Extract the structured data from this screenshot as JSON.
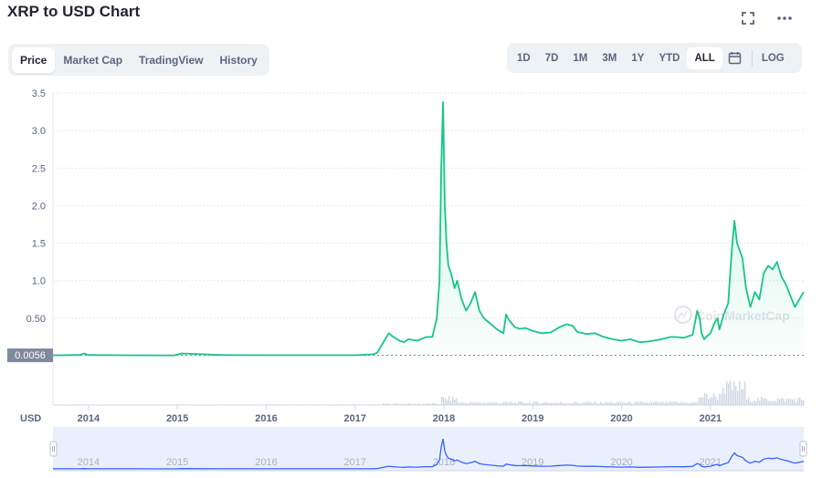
{
  "title": "XRP to USD Chart",
  "tabs": [
    {
      "label": "Price",
      "active": true
    },
    {
      "label": "Market Cap",
      "active": false
    },
    {
      "label": "TradingView",
      "active": false
    },
    {
      "label": "History",
      "active": false
    }
  ],
  "ranges": [
    {
      "label": "1D",
      "active": false
    },
    {
      "label": "7D",
      "active": false
    },
    {
      "label": "1M",
      "active": false
    },
    {
      "label": "3M",
      "active": false
    },
    {
      "label": "1Y",
      "active": false
    },
    {
      "label": "YTD",
      "active": false
    },
    {
      "label": "ALL",
      "active": true
    }
  ],
  "log_label": "LOG",
  "icons": {
    "fullscreen": "fullscreen-icon",
    "more": "more-icon",
    "calendar": "calendar-icon"
  },
  "colors": {
    "line": "#16c784",
    "navigator_line": "#3861fb",
    "volume": "#cfd6e4",
    "price_tag": "#808a9d"
  },
  "chart_data": {
    "type": "line",
    "title": "XRP to USD Chart",
    "currency_label": "USD",
    "current_price_label": "0.0056",
    "current_price": 0.0056,
    "watermark": "CoinMarketCap",
    "ylim": [
      0,
      3.5
    ],
    "y_ticks": [
      {
        "value": 0.5,
        "label": "0.50"
      },
      {
        "value": 1.0,
        "label": "1.0"
      },
      {
        "value": 1.5,
        "label": "1.5"
      },
      {
        "value": 2.0,
        "label": "2.0"
      },
      {
        "value": 2.5,
        "label": "2.5"
      },
      {
        "value": 3.0,
        "label": "3.0"
      },
      {
        "value": 3.5,
        "label": "3.5"
      }
    ],
    "xlim": [
      2013.6,
      2022.05
    ],
    "x_ticks": [
      {
        "value": 2014,
        "label": "2014"
      },
      {
        "value": 2015,
        "label": "2015"
      },
      {
        "value": 2016,
        "label": "2016"
      },
      {
        "value": 2017,
        "label": "2017"
      },
      {
        "value": 2018,
        "label": "2018"
      },
      {
        "value": 2019,
        "label": "2019"
      },
      {
        "value": 2020,
        "label": "2020"
      },
      {
        "value": 2021,
        "label": "2021"
      }
    ],
    "series": [
      {
        "x": [
          2013.6,
          2013.9,
          2013.95,
          2014.0,
          2014.5,
          2014.96,
          2015.05,
          2015.5,
          2016.0,
          2016.5,
          2017.0,
          2017.2,
          2017.25,
          2017.33,
          2017.38,
          2017.42,
          2017.5,
          2017.55,
          2017.6,
          2017.7,
          2017.8,
          2017.87,
          2017.92,
          2017.95,
          2017.97,
          2017.99,
          2018.01,
          2018.03,
          2018.05,
          2018.08,
          2018.12,
          2018.15,
          2018.2,
          2018.25,
          2018.3,
          2018.35,
          2018.4,
          2018.45,
          2018.5,
          2018.55,
          2018.6,
          2018.67,
          2018.7,
          2018.72,
          2018.75,
          2018.8,
          2018.85,
          2018.92,
          2019.0,
          2019.1,
          2019.2,
          2019.3,
          2019.38,
          2019.45,
          2019.5,
          2019.6,
          2019.7,
          2019.8,
          2019.9,
          2020.0,
          2020.1,
          2020.2,
          2020.3,
          2020.45,
          2020.55,
          2020.6,
          2020.7,
          2020.8,
          2020.85,
          2020.88,
          2020.9,
          2020.93,
          2020.95,
          2021.0,
          2021.05,
          2021.08,
          2021.1,
          2021.15,
          2021.2,
          2021.24,
          2021.27,
          2021.3,
          2021.33,
          2021.36,
          2021.4,
          2021.45,
          2021.5,
          2021.55,
          2021.6,
          2021.65,
          2021.7,
          2021.75,
          2021.8,
          2021.85,
          2021.9,
          2021.95,
          2022.0,
          2022.05
        ],
        "y": [
          0.0056,
          0.01,
          0.03,
          0.01,
          0.006,
          0.005,
          0.03,
          0.01,
          0.007,
          0.007,
          0.007,
          0.02,
          0.04,
          0.2,
          0.3,
          0.26,
          0.2,
          0.18,
          0.22,
          0.2,
          0.25,
          0.25,
          0.5,
          1.0,
          2.5,
          3.38,
          2.0,
          1.5,
          1.2,
          1.1,
          0.9,
          1.0,
          0.75,
          0.6,
          0.7,
          0.85,
          0.6,
          0.5,
          0.45,
          0.4,
          0.35,
          0.3,
          0.55,
          0.5,
          0.45,
          0.38,
          0.36,
          0.37,
          0.33,
          0.3,
          0.31,
          0.38,
          0.42,
          0.4,
          0.32,
          0.29,
          0.3,
          0.25,
          0.22,
          0.2,
          0.22,
          0.18,
          0.19,
          0.22,
          0.25,
          0.25,
          0.24,
          0.28,
          0.6,
          0.5,
          0.3,
          0.22,
          0.25,
          0.3,
          0.45,
          0.5,
          0.35,
          0.55,
          0.7,
          1.4,
          1.8,
          1.5,
          1.4,
          1.3,
          0.9,
          0.65,
          0.85,
          0.75,
          1.1,
          1.2,
          1.15,
          1.25,
          1.05,
          0.95,
          0.8,
          0.65,
          0.75,
          0.85
        ]
      }
    ]
  }
}
